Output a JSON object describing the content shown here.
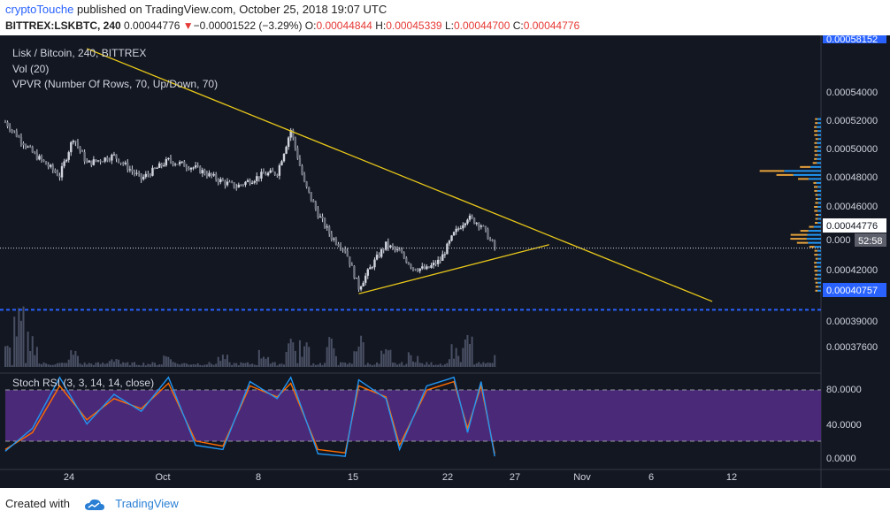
{
  "header": {
    "author": "cryptoTouche",
    "published_text": "published on TradingView.com, October 25, 2018 19:07 UTC",
    "symbol": "BITTREX:LSKBTC, 240",
    "last_price": "0.00044776",
    "change": "−0.00001522 (−3.29%)",
    "open_label": "O:",
    "open": "0.00044844",
    "high_label": "H:",
    "high": "0.00045339",
    "low_label": "L:",
    "low": "0.00044700",
    "close_label": "C:",
    "close": "0.00044776",
    "down_arrow_icon": "triangle-down-icon"
  },
  "legend": {
    "title": "Lisk / Bitcoin, 240, BITTREX",
    "volume": "Vol (20)",
    "vpvr": "VPVR (Number Of Rows, 70, Up/Down, 70)"
  },
  "oscillator": {
    "title": "Stoch RSI (3, 3, 14, 14, close)",
    "ticks": [
      "80.0000",
      "40.0000",
      "0.0000"
    ],
    "overbought": 80,
    "oversold": 20,
    "k_color": "#2196f3",
    "d_color": "#ff6d00",
    "band_color": "#4a2a78"
  },
  "price_axis": {
    "ticks": [
      "0.00054000",
      "0.00052000",
      "0.00050000",
      "0.00048000",
      "0.00046000",
      "0.00042000",
      "0.00039000",
      "0.00037600"
    ],
    "top_label": "0.00058152",
    "current_label": "0.00044776",
    "current_partial": "0.000",
    "countdown": "52:58",
    "support_label": "0.00040757"
  },
  "time_axis": {
    "ticks": [
      "24",
      "Oct",
      "8",
      "15",
      "22",
      "27",
      "Nov",
      "6",
      "12"
    ]
  },
  "colors": {
    "background": "#131722",
    "candle": "#d1d4dc",
    "trendline": "#e6c619",
    "support": "#2962ff",
    "volume": "#4a5064",
    "vpvr_up": "#2196f3",
    "vpvr_down": "#e6a23c"
  },
  "footer": {
    "created_with": "Created with",
    "brand": "TradingView",
    "logo_icon": "tradingview-cloud-icon"
  },
  "chart_data": {
    "type": "candlestick",
    "title": "Lisk / Bitcoin, 240, BITTREX",
    "x_range": [
      "2018-09-19",
      "2018-11-18"
    ],
    "price_range": [
      0.000372,
      0.000582
    ],
    "price_series": {
      "name": "LSKBTC",
      "points": [
        [
          "2018-09-19",
          0.00053
        ],
        [
          "2018-09-21",
          0.00051
        ],
        [
          "2018-09-23",
          0.000495
        ],
        [
          "2018-09-24",
          0.00052
        ],
        [
          "2018-09-25",
          0.000503
        ],
        [
          "2018-09-27",
          0.000508
        ],
        [
          "2018-09-29",
          0.000493
        ],
        [
          "2018-10-01",
          0.000505
        ],
        [
          "2018-10-03",
          0.0005
        ],
        [
          "2018-10-05",
          0.000491
        ],
        [
          "2018-10-06",
          0.000488
        ],
        [
          "2018-10-08",
          0.000496
        ],
        [
          "2018-10-09",
          0.000497
        ],
        [
          "2018-10-10",
          0.000525
        ],
        [
          "2018-10-11",
          0.00049
        ],
        [
          "2018-10-12",
          0.00047
        ],
        [
          "2018-10-13",
          0.000455
        ],
        [
          "2018-10-14",
          0.000447
        ],
        [
          "2018-10-15",
          0.000422
        ],
        [
          "2018-10-16",
          0.000437
        ],
        [
          "2018-10-17",
          0.00045
        ],
        [
          "2018-10-18",
          0.000445
        ],
        [
          "2018-10-19",
          0.000435
        ],
        [
          "2018-10-20",
          0.000434
        ],
        [
          "2018-10-21",
          0.00044
        ],
        [
          "2018-10-22",
          0.000457
        ],
        [
          "2018-10-23",
          0.000468
        ],
        [
          "2018-10-24",
          0.000463
        ],
        [
          "2018-10-25",
          0.000448
        ]
      ]
    },
    "volume_series": {
      "name": "Vol (20)",
      "points": [
        [
          "2018-09-19",
          0.4
        ],
        [
          "2018-09-20",
          1.0
        ],
        [
          "2018-09-21",
          0.6
        ],
        [
          "2018-09-24",
          0.3
        ],
        [
          "2018-09-27",
          0.2
        ],
        [
          "2018-10-01",
          0.25
        ],
        [
          "2018-10-05",
          0.2
        ],
        [
          "2018-10-08",
          0.3
        ],
        [
          "2018-10-10",
          0.6
        ],
        [
          "2018-10-11",
          0.45
        ],
        [
          "2018-10-13",
          0.5
        ],
        [
          "2018-10-15",
          0.55
        ],
        [
          "2018-10-17",
          0.3
        ],
        [
          "2018-10-19",
          0.25
        ],
        [
          "2018-10-22",
          0.4
        ],
        [
          "2018-10-23",
          0.55
        ],
        [
          "2018-10-25",
          0.2
        ]
      ]
    },
    "stoch_rsi": {
      "k": [
        [
          "2018-09-19",
          8
        ],
        [
          "2018-09-21",
          35
        ],
        [
          "2018-09-23",
          95
        ],
        [
          "2018-09-25",
          40
        ],
        [
          "2018-09-27",
          75
        ],
        [
          "2018-09-29",
          55
        ],
        [
          "2018-10-01",
          95
        ],
        [
          "2018-10-03",
          15
        ],
        [
          "2018-10-05",
          10
        ],
        [
          "2018-10-07",
          90
        ],
        [
          "2018-10-09",
          70
        ],
        [
          "2018-10-10",
          95
        ],
        [
          "2018-10-12",
          5
        ],
        [
          "2018-10-14",
          2
        ],
        [
          "2018-10-15",
          92
        ],
        [
          "2018-10-17",
          70
        ],
        [
          "2018-10-18",
          10
        ],
        [
          "2018-10-20",
          85
        ],
        [
          "2018-10-22",
          95
        ],
        [
          "2018-10-23",
          30
        ],
        [
          "2018-10-24",
          90
        ],
        [
          "2018-10-25",
          2
        ]
      ],
      "d": [
        [
          "2018-09-19",
          10
        ],
        [
          "2018-09-21",
          30
        ],
        [
          "2018-09-23",
          85
        ],
        [
          "2018-09-25",
          45
        ],
        [
          "2018-09-27",
          70
        ],
        [
          "2018-09-29",
          58
        ],
        [
          "2018-10-01",
          88
        ],
        [
          "2018-10-03",
          20
        ],
        [
          "2018-10-05",
          14
        ],
        [
          "2018-10-07",
          85
        ],
        [
          "2018-10-09",
          72
        ],
        [
          "2018-10-10",
          88
        ],
        [
          "2018-10-12",
          10
        ],
        [
          "2018-10-14",
          6
        ],
        [
          "2018-10-15",
          85
        ],
        [
          "2018-10-17",
          72
        ],
        [
          "2018-10-18",
          15
        ],
        [
          "2018-10-20",
          80
        ],
        [
          "2018-10-22",
          90
        ],
        [
          "2018-10-23",
          35
        ],
        [
          "2018-10-24",
          85
        ],
        [
          "2018-10-25",
          5
        ]
      ]
    },
    "trendlines": [
      {
        "name": "descending-resistance",
        "from": [
          "2018-09-25",
          0.000578
        ],
        "to": [
          "2018-11-10",
          0.000413
        ]
      },
      {
        "name": "ascending-support",
        "from": [
          "2018-10-15",
          0.000418
        ],
        "to": [
          "2018-10-29",
          0.00045
        ]
      }
    ],
    "horizontal_levels": [
      {
        "name": "support",
        "value": 0.00040757
      },
      {
        "name": "last-price",
        "value": 0.00044776
      }
    ]
  }
}
